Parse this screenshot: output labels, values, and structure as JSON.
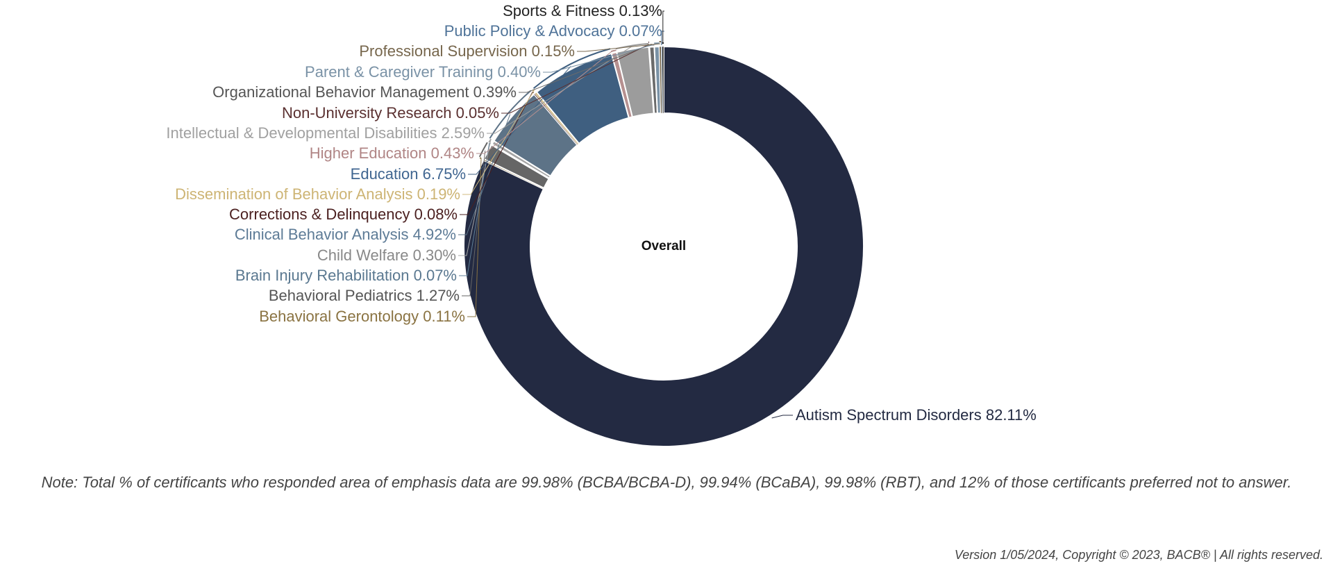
{
  "chart_data": {
    "type": "pie",
    "variant": "donut",
    "center_label": "Overall",
    "label_format": "{name} {value}%",
    "slices": [
      {
        "name": "Autism Spectrum Disorders",
        "value": 82.11,
        "value_label": "82.11%",
        "color": "#232a42",
        "label_color": "#232a42"
      },
      {
        "name": "Behavioral Gerontology",
        "value": 0.11,
        "value_label": "0.11%",
        "color": "#8a7342",
        "label_color": "#8a7342"
      },
      {
        "name": "Behavioral Pediatrics",
        "value": 1.27,
        "value_label": "1.27%",
        "color": "#666666",
        "label_color": "#555555"
      },
      {
        "name": "Brain Injury Rehabilitation",
        "value": 0.07,
        "value_label": "0.07%",
        "color": "#5f7f98",
        "label_color": "#5a7890"
      },
      {
        "name": "Child Welfare",
        "value": 0.3,
        "value_label": "0.30%",
        "color": "#a5a5a5",
        "label_color": "#888888"
      },
      {
        "name": "Clinical Behavior Analysis",
        "value": 4.92,
        "value_label": "4.92%",
        "color": "#5d7387",
        "label_color": "#5d7b96"
      },
      {
        "name": "Corrections & Delinquency",
        "value": 0.08,
        "value_label": "0.08%",
        "color": "#4a1f1f",
        "label_color": "#4a1f1f"
      },
      {
        "name": "Dissemination of Behavior Analysis",
        "value": 0.19,
        "value_label": "0.19%",
        "color": "#d1bb82",
        "label_color": "#cdb474"
      },
      {
        "name": "Education",
        "value": 6.75,
        "value_label": "6.75%",
        "color": "#3f5f80",
        "label_color": "#3f6590"
      },
      {
        "name": "Higher Education",
        "value": 0.43,
        "value_label": "0.43%",
        "color": "#b69090",
        "label_color": "#b08585"
      },
      {
        "name": "Intellectual & Developmental Disabilities",
        "value": 2.59,
        "value_label": "2.59%",
        "color": "#9c9c9c",
        "label_color": "#a0a0a0"
      },
      {
        "name": "Non-University Research",
        "value": 0.05,
        "value_label": "0.05%",
        "color": "#5a3030",
        "label_color": "#5a3030"
      },
      {
        "name": "Organizational Behavior Management",
        "value": 0.39,
        "value_label": "0.39%",
        "color": "#6b6b6b",
        "label_color": "#555555"
      },
      {
        "name": "Parent & Caregiver Training",
        "value": 0.4,
        "value_label": "0.40%",
        "color": "#7a92a6",
        "label_color": "#7a92a6"
      },
      {
        "name": "Professional Supervision",
        "value": 0.15,
        "value_label": "0.15%",
        "color": "#7a6a50",
        "label_color": "#76664c"
      },
      {
        "name": "Public Policy & Advocacy",
        "value": 0.07,
        "value_label": "0.07%",
        "color": "#4f7398",
        "label_color": "#4f7398"
      },
      {
        "name": "Sports & Fitness",
        "value": 0.13,
        "value_label": "0.13%",
        "color": "#222222",
        "label_color": "#222222"
      }
    ]
  },
  "note": "Note: Total % of certificants who responded area of emphasis data are 99.98% (BCBA/BCBA-D), 99.94% (BCaBA), 99.98% (RBT), and 12% of those certificants preferred not to answer.",
  "footer": "Version 1/05/2024, Copyright © 2023, BACB® | All rights reserved."
}
